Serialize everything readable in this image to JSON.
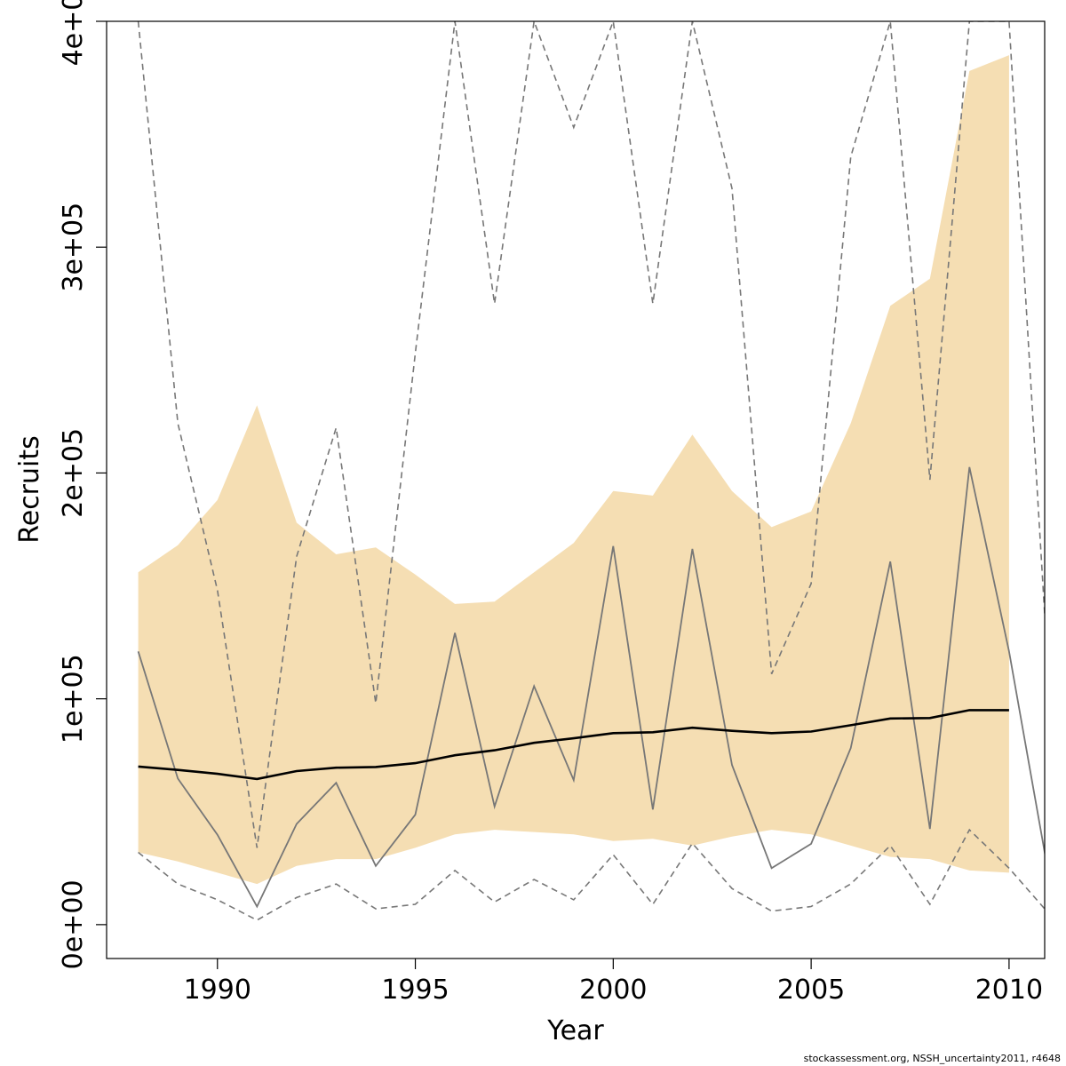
{
  "chart_data": {
    "type": "line",
    "title": "",
    "xlabel": "Year",
    "ylabel": "Recruits",
    "xlim": [
      1987.2,
      2010.9
    ],
    "ylim": [
      -15000,
      400000
    ],
    "x_ticks": [
      1990,
      1995,
      2000,
      2005,
      2010
    ],
    "x_tick_labels": [
      "1990",
      "1995",
      "2000",
      "2005",
      "2010"
    ],
    "y_ticks": [
      0,
      100000,
      200000,
      300000,
      400000
    ],
    "y_tick_labels": [
      "0e+00",
      "1e+05",
      "2e+05",
      "3e+05",
      "4e+05"
    ],
    "grid": false,
    "legend": "none",
    "footnote": "stockassessment.org, NSSH_uncertainty2011, r4648",
    "colors": {
      "band": "#f5deb3",
      "median": "#000000",
      "estimate": "#777777",
      "estimate_ci": "#777777"
    },
    "x": [
      1988,
      1989,
      1990,
      1991,
      1992,
      1993,
      1994,
      1995,
      1996,
      1997,
      1998,
      1999,
      2000,
      2001,
      2002,
      2003,
      2004,
      2005,
      2006,
      2007,
      2008,
      2009,
      2010,
      2011
    ],
    "series": [
      {
        "role": "band_upper",
        "values": [
          156000,
          168000,
          188000,
          230000,
          178000,
          164000,
          167000,
          155000,
          142000,
          143000,
          156000,
          169000,
          192000,
          190000,
          217000,
          192000,
          176000,
          183000,
          222000,
          274000,
          286000,
          378000,
          385000,
          null
        ]
      },
      {
        "role": "band_lower",
        "values": [
          32000,
          28000,
          23000,
          18000,
          26000,
          29000,
          29000,
          34000,
          40000,
          42000,
          41000,
          40000,
          37000,
          38000,
          35000,
          39000,
          42000,
          40000,
          35000,
          30000,
          29000,
          24000,
          23000,
          null
        ]
      },
      {
        "role": "median",
        "values": [
          70000,
          68500,
          66800,
          64500,
          68000,
          69500,
          69800,
          71500,
          75000,
          77200,
          80500,
          82500,
          84800,
          85200,
          87200,
          85800,
          84800,
          85500,
          88300,
          91300,
          91500,
          95000,
          95000,
          null
        ]
      },
      {
        "role": "estimate",
        "values": [
          121000,
          64700,
          39800,
          8000,
          44600,
          62800,
          26000,
          48700,
          129200,
          52300,
          105600,
          64000,
          167600,
          51000,
          166400,
          70700,
          25000,
          35800,
          78200,
          160800,
          42400,
          202600,
          121000,
          22000
        ]
      },
      {
        "role": "estimate_upper",
        "values": [
          400000,
          222000,
          148000,
          34000,
          163000,
          220000,
          98000,
          253000,
          400000,
          275000,
          400000,
          353000,
          400000,
          275000,
          400000,
          326000,
          111000,
          151000,
          340000,
          400000,
          197000,
          400000,
          400000,
          108000
        ]
      },
      {
        "role": "estimate_lower",
        "values": [
          32000,
          18000,
          11000,
          2000,
          12000,
          18000,
          7000,
          9000,
          24000,
          10000,
          20000,
          11000,
          31000,
          9000,
          36000,
          16000,
          6000,
          8000,
          18000,
          35000,
          9000,
          42000,
          25000,
          5000
        ]
      }
    ]
  }
}
